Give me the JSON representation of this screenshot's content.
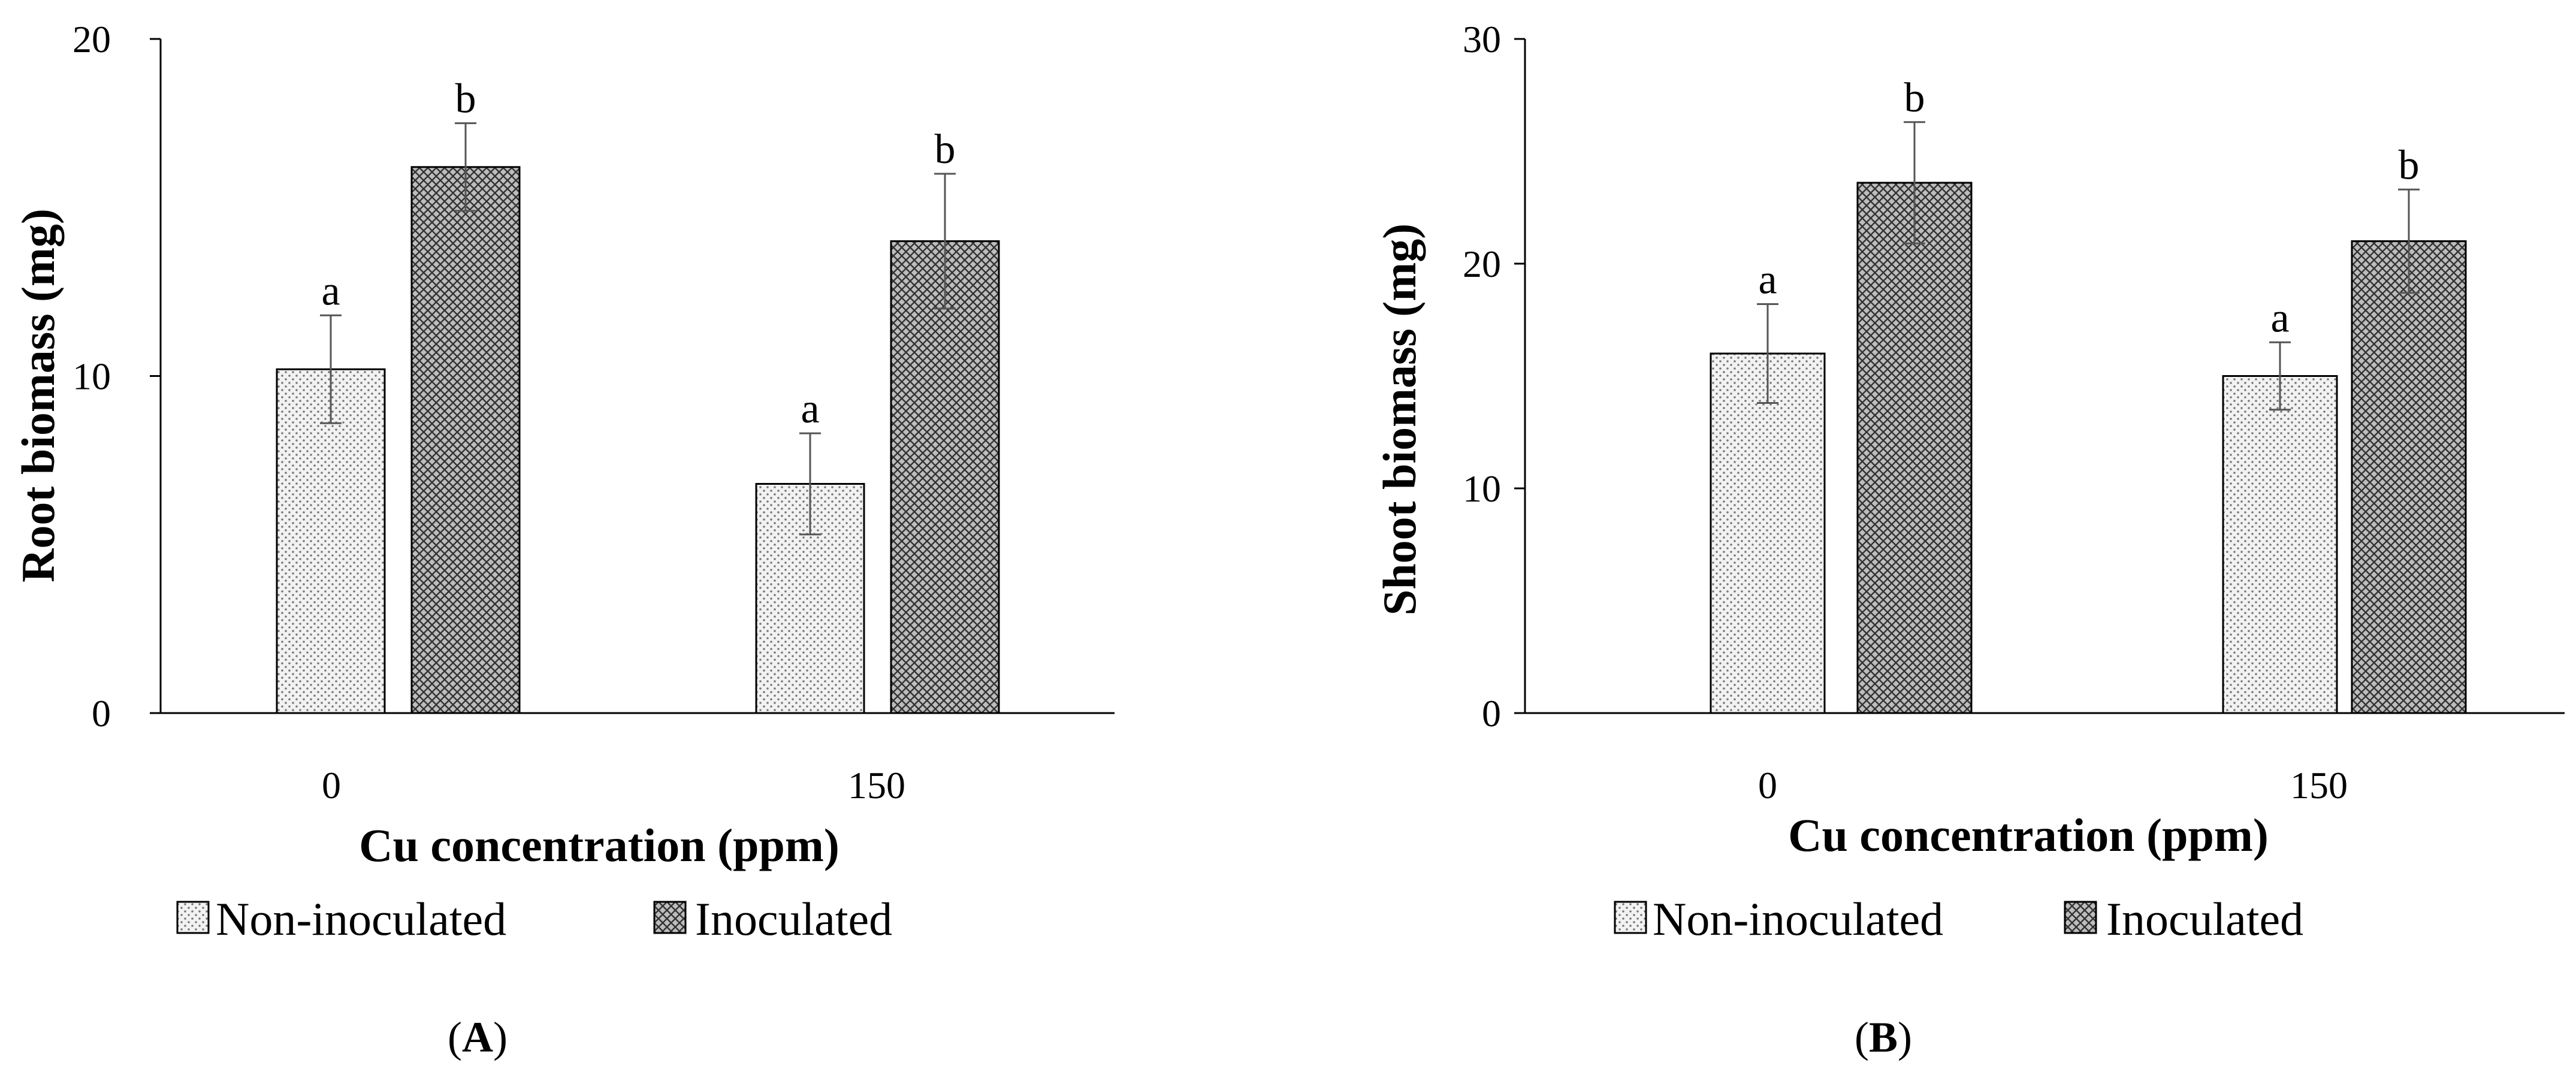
{
  "colors": {
    "axis": "#000000",
    "bar_outline": "#000000",
    "dot_fill": "#f2f2f2",
    "dot_mark": "#777777",
    "cross_fill": "#bdbdbd",
    "cross_line": "#333333",
    "error_bar": "#555555"
  },
  "chart_data": [
    {
      "panel": "(A)",
      "panel_letter": "A",
      "type": "bar",
      "xlabel": "Cu concentration (ppm)",
      "ylabel": "Root biomass (mg)",
      "ylim": [
        0,
        20
      ],
      "yticks": [
        "0",
        "10",
        "20"
      ],
      "categories": [
        "0",
        "150"
      ],
      "series": [
        {
          "name": "Non-inoculated",
          "pattern": "dots",
          "values": [
            10.2,
            6.8
          ],
          "errors": [
            1.6,
            1.5
          ],
          "labels": [
            "a",
            "a"
          ]
        },
        {
          "name": "Inoculated",
          "pattern": "crosshatch",
          "values": [
            16.2,
            14.0
          ],
          "errors": [
            1.3,
            2.0
          ],
          "labels": [
            "b",
            "b"
          ]
        }
      ],
      "legend": [
        "Non-inoculated",
        "Inoculated"
      ]
    },
    {
      "panel": "(B)",
      "panel_letter": "B",
      "type": "bar",
      "xlabel": "Cu  concentration (ppm)",
      "ylabel": "Shoot biomass (mg)",
      "ylim": [
        0,
        30
      ],
      "yticks": [
        "0",
        "10",
        "20",
        "30"
      ],
      "categories": [
        "0",
        "150"
      ],
      "series": [
        {
          "name": "Non-inoculated",
          "pattern": "dots",
          "values": [
            16.0,
            15.0
          ],
          "errors": [
            2.2,
            1.5
          ],
          "labels": [
            "a",
            "a"
          ]
        },
        {
          "name": "Inoculated",
          "pattern": "crosshatch",
          "values": [
            23.6,
            21.0
          ],
          "errors": [
            2.7,
            2.3
          ],
          "labels": [
            "b",
            "b"
          ]
        }
      ],
      "legend": [
        "Non-inoculated",
        "Inoculated"
      ]
    }
  ]
}
